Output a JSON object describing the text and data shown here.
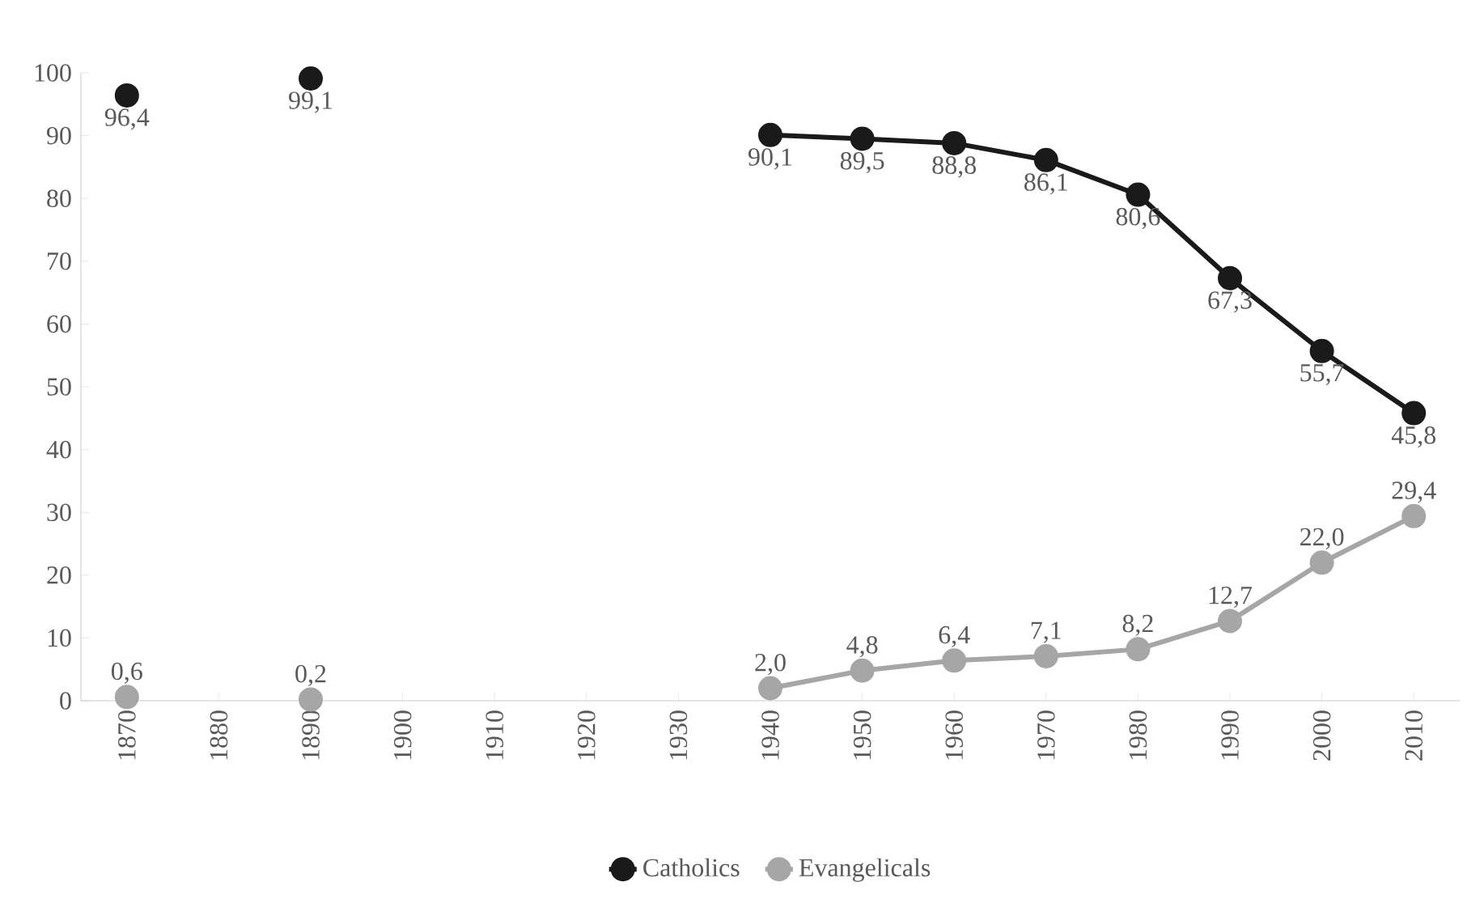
{
  "chart_data": {
    "type": "line",
    "categories": [
      "1870",
      "1880",
      "1890",
      "1900",
      "1910",
      "1920",
      "1930",
      "1940",
      "1950",
      "1960",
      "1970",
      "1980",
      "1990",
      "2000",
      "2010"
    ],
    "series": [
      {
        "name": "Catholics",
        "color": "#1a1a1a",
        "values": [
          96.4,
          null,
          99.1,
          null,
          null,
          null,
          null,
          90.1,
          89.5,
          88.8,
          86.1,
          80.6,
          67.3,
          55.7,
          45.8
        ],
        "value_labels": [
          "96,4",
          null,
          "99,1",
          null,
          null,
          null,
          null,
          "90,1",
          "89,5",
          "88,8",
          "86,1",
          "80,6",
          "67,3",
          "55,7",
          "45,8"
        ]
      },
      {
        "name": "Evangelicals",
        "color": "#a6a6a6",
        "values": [
          0.6,
          null,
          0.2,
          null,
          null,
          null,
          null,
          2.0,
          4.8,
          6.4,
          7.1,
          8.2,
          12.7,
          22.0,
          29.4
        ],
        "value_labels": [
          "0,6",
          null,
          "0,2",
          null,
          null,
          null,
          null,
          "2,0",
          "4,8",
          "6,4",
          "7,1",
          "8,2",
          "12,7",
          "22,0",
          "29,4"
        ]
      }
    ],
    "ylim": [
      0,
      100
    ],
    "yticks": [
      0,
      10,
      20,
      30,
      40,
      50,
      60,
      70,
      80,
      90,
      100
    ],
    "marker": "circle",
    "line_style": "solid",
    "legend": "bottom"
  }
}
